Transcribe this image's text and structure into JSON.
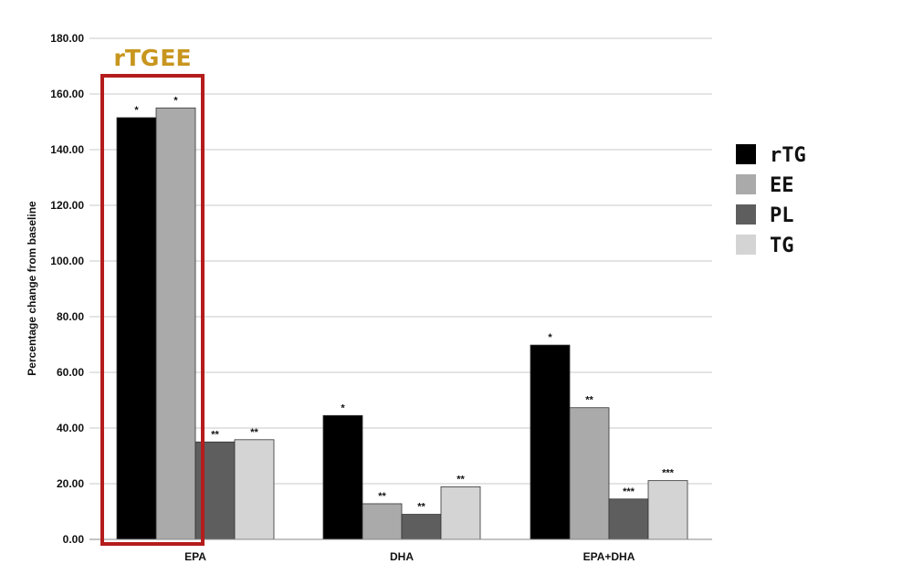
{
  "chart_data": {
    "type": "bar",
    "ylabel": "Percentage change from baseline",
    "xlabel": "",
    "ylim": [
      0,
      180
    ],
    "yticks": [
      "0.00",
      "20.00",
      "40.00",
      "60.00",
      "80.00",
      "100.00",
      "120.00",
      "140.00",
      "160.00",
      "180.00"
    ],
    "categories": [
      "EPA",
      "DHA",
      "EPA+DHA"
    ],
    "series": [
      {
        "name": "rTG",
        "color": "#000000",
        "values": [
          151.5,
          44.5,
          69.8
        ],
        "significance": [
          "*",
          "*",
          "*"
        ]
      },
      {
        "name": "EE",
        "color": "#aaaaaa",
        "values": [
          155.0,
          12.8,
          47.3
        ],
        "significance": [
          "*",
          "**",
          "**"
        ]
      },
      {
        "name": "PL",
        "color": "#5e5e5e",
        "values": [
          35.0,
          9.0,
          14.5
        ],
        "significance": [
          "**",
          "**",
          "***"
        ]
      },
      {
        "name": "TG",
        "color": "#d4d4d4",
        "values": [
          35.8,
          18.9,
          21.1
        ],
        "significance": [
          "**",
          "**",
          "***"
        ]
      }
    ],
    "grid": true,
    "legend_position": "right",
    "highlight": {
      "category": "EPA",
      "series": [
        "rTG",
        "EE"
      ],
      "labels": [
        "rTG",
        "EE"
      ],
      "box_color": "#b51c1c",
      "text_color": "#c8961e"
    }
  }
}
